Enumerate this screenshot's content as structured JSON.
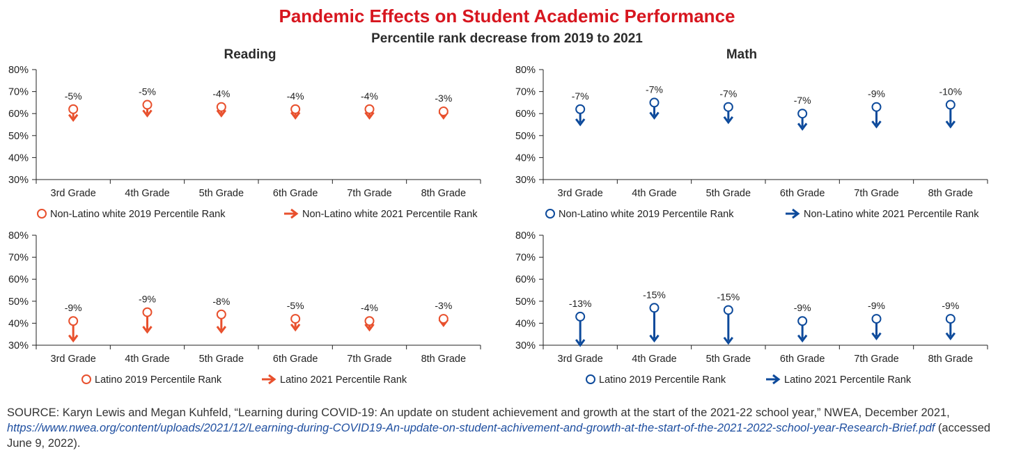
{
  "title": "Pandemic Effects on Student Academic Performance",
  "subtitle": "Percentile rank decrease from 2019 to 2021",
  "column_titles": {
    "reading": "Reading",
    "math": "Math"
  },
  "colors": {
    "title": "#d7161f",
    "reading": "#e8502d",
    "math": "#0d4a9b"
  },
  "source": {
    "text_before": "SOURCE: Karyn Lewis and Megan Kuhfeld, “Learning during COVID-19: An update on student achievement and growth at the start of the 2021-22 school year,” NWEA, December 2021, ",
    "link": "https://www.nwea.org/content/uploads/2021/12/Learning-during-COVID19-An-update-on-student-achivement-and-growth-at-the-start-of-the-2021-2022-school-year-Research-Brief.pdf",
    "text_after": " (accessed June 9, 2022)."
  },
  "chart_data": [
    {
      "id": "reading-white",
      "type": "scatter",
      "subject": "Reading",
      "categories": [
        "3rd Grade",
        "4th Grade",
        "5th Grade",
        "6th Grade",
        "7th Grade",
        "8th Grade"
      ],
      "ylim": [
        30,
        80
      ],
      "yticks": [
        "30%",
        "40%",
        "50%",
        "60%",
        "70%",
        "80%"
      ],
      "series": [
        {
          "name": "Non-Latino white 2019 Percentile Rank",
          "values": [
            62,
            64,
            63,
            62,
            62,
            61
          ]
        },
        {
          "name": "Non-Latino white 2021 Percentile Rank",
          "values": [
            57,
            59,
            59,
            58,
            58,
            58
          ]
        }
      ],
      "annotations": [
        "-5%",
        "-5%",
        "-4%",
        "-4%",
        "-4%",
        "-3%"
      ],
      "color": "#e8502d"
    },
    {
      "id": "math-white",
      "type": "scatter",
      "subject": "Math",
      "categories": [
        "3rd Grade",
        "4th Grade",
        "5th Grade",
        "6th Grade",
        "7th Grade",
        "8th Grade"
      ],
      "ylim": [
        30,
        80
      ],
      "yticks": [
        "30%",
        "40%",
        "50%",
        "60%",
        "70%",
        "80%"
      ],
      "series": [
        {
          "name": "Non-Latino white 2019 Percentile Rank",
          "values": [
            62,
            65,
            63,
            60,
            63,
            64
          ]
        },
        {
          "name": "Non-Latino white 2021 Percentile Rank",
          "values": [
            55,
            58,
            56,
            53,
            54,
            54
          ]
        }
      ],
      "annotations": [
        "-7%",
        "-7%",
        "-7%",
        "-7%",
        "-9%",
        "-10%"
      ],
      "color": "#0d4a9b"
    },
    {
      "id": "reading-latino",
      "type": "scatter",
      "subject": "Reading",
      "categories": [
        "3rd Grade",
        "4th Grade",
        "5th Grade",
        "6th Grade",
        "7th Grade",
        "8th Grade"
      ],
      "ylim": [
        30,
        80
      ],
      "yticks": [
        "30%",
        "40%",
        "50%",
        "60%",
        "70%",
        "80%"
      ],
      "series": [
        {
          "name": "Latino 2019 Percentile Rank",
          "values": [
            41,
            45,
            44,
            42,
            41,
            42
          ]
        },
        {
          "name": "Latino 2021 Percentile Rank",
          "values": [
            32,
            36,
            36,
            37,
            37,
            39
          ]
        }
      ],
      "annotations": [
        "-9%",
        "-9%",
        "-8%",
        "-5%",
        "-4%",
        "-3%"
      ],
      "color": "#e8502d"
    },
    {
      "id": "math-latino",
      "type": "scatter",
      "subject": "Math",
      "categories": [
        "3rd Grade",
        "4th Grade",
        "5th Grade",
        "6th Grade",
        "7th Grade",
        "8th Grade"
      ],
      "ylim": [
        30,
        80
      ],
      "yticks": [
        "30%",
        "40%",
        "50%",
        "60%",
        "70%",
        "80%"
      ],
      "series": [
        {
          "name": "Latino 2019 Percentile Rank",
          "values": [
            43,
            47,
            46,
            41,
            42,
            42
          ]
        },
        {
          "name": "Latino 2021 Percentile Rank",
          "values": [
            30,
            32,
            31,
            32,
            33,
            33
          ]
        }
      ],
      "annotations": [
        "-13%",
        "-15%",
        "-15%",
        "-9%",
        "-9%",
        "-9%"
      ],
      "color": "#0d4a9b"
    }
  ]
}
